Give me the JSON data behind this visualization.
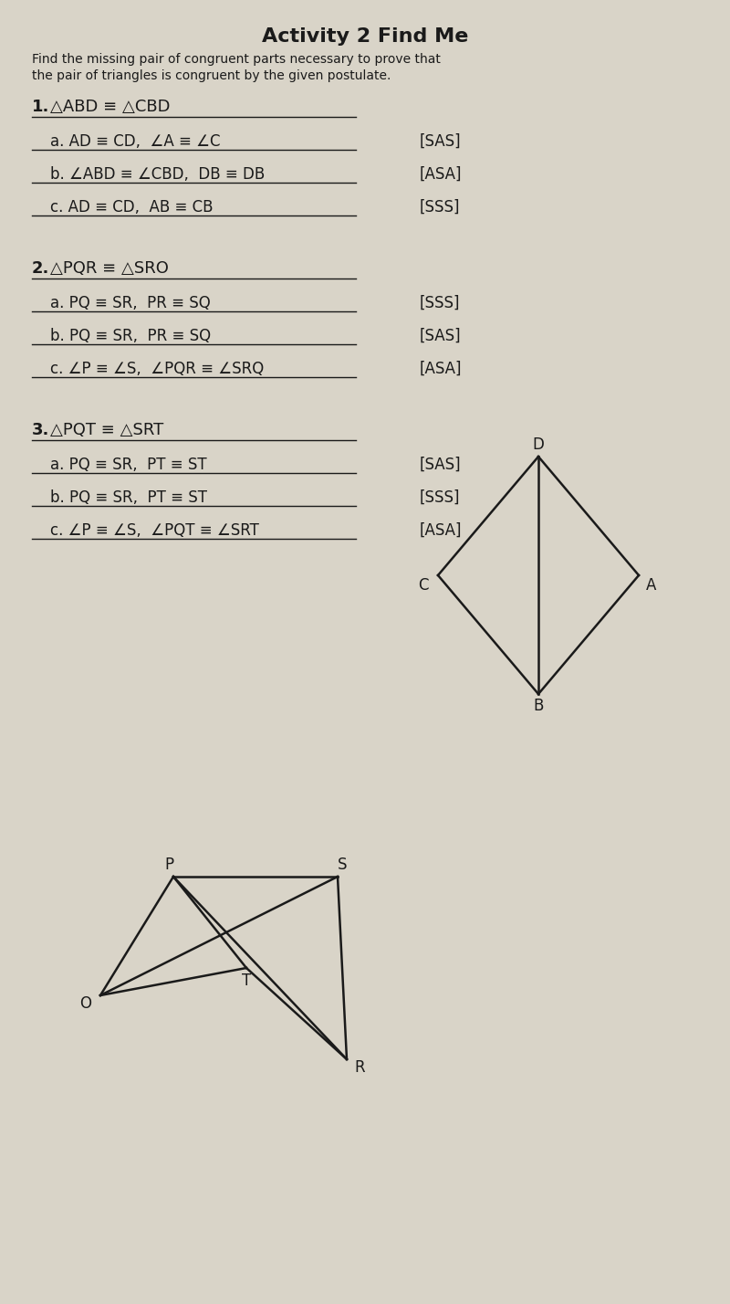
{
  "title": "Activity 2 Find Me",
  "subtitle": "Find the missing pair of congruent parts necessary to prove that the pair of triangles is congruent by the given postulate.",
  "bg_color": "#d9d4c8",
  "text_color": "#1a1a1a",
  "p1_header": "1.",
  "p1_congruence": "△ABD ≡ △CBD",
  "p1_a": "a. AD ≡ CD,  ∠A ≡ ∠C",
  "p1_b": "b. ∠ABD ≡ ∠CBD,  DB ≡ DB",
  "p1_c": "c. AD ≡ CD,  AB ≡ CB",
  "p1_tags": [
    "[SAS]",
    "[ASA]",
    "[SSS]"
  ],
  "p2_header": "2.",
  "p2_congruence": "△PQR ≡ △SRO",
  "p2_a": "a. PQ ≡ SR,  PR ≡ SQ",
  "p2_b": "b. PQ ≡ SR,  PR ≡ SQ",
  "p2_c": "c. ∠P ≡ ∠S,  ∠PQR ≡ ∠SRQ",
  "p2_tags": [
    "[SSS]",
    "[SAS]",
    "[ASA]"
  ],
  "p3_header": "3.",
  "p3_congruence": "△PQT ≡ △SRT",
  "p3_a": "a. PQ ≡ SR,  PT ≡ ST",
  "p3_b": "b. PQ ≡ SR,  PT ≡ ST",
  "p3_c": "c. ∠P ≡ ∠S,  ∠PQT ≡ ∠SRT",
  "p3_tags": [
    "[SAS]",
    "[SSS]",
    "[ASA]"
  ]
}
